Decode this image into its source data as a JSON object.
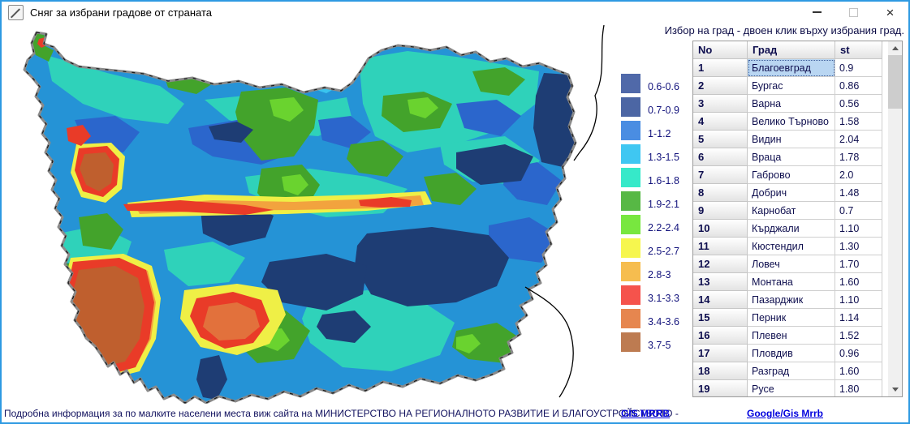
{
  "window": {
    "title": "Сняг за избрани градове от страната",
    "icons": {
      "app": "pencil-icon",
      "minimize": "minimize-icon",
      "maximize": "maximize-icon",
      "close": "close-icon"
    },
    "close_glyph": "×"
  },
  "panel": {
    "instruction": "Избор на град - двоен клик върху избрания град."
  },
  "legend": {
    "items": [
      {
        "label": "0.6-0.6",
        "color": "#5069a9"
      },
      {
        "label": "0.7-0.9",
        "color": "#4c66a4"
      },
      {
        "label": "1-1.2",
        "color": "#4a8de2"
      },
      {
        "label": "1.3-1.5",
        "color": "#3fc7f2"
      },
      {
        "label": "1.6-1.8",
        "color": "#36e9c9"
      },
      {
        "label": "1.9-2.1",
        "color": "#57b845"
      },
      {
        "label": "2.2-2.4",
        "color": "#78e73f"
      },
      {
        "label": "2.5-2.7",
        "color": "#f6f64e"
      },
      {
        "label": "2.8-3",
        "color": "#f6bd4f"
      },
      {
        "label": "3.1-3.3",
        "color": "#f5534c"
      },
      {
        "label": "3.4-3.6",
        "color": "#e6864f"
      },
      {
        "label": "3.7-5",
        "color": "#bd7b51"
      }
    ]
  },
  "table": {
    "columns": [
      "No",
      "Град",
      "st"
    ],
    "rows": [
      {
        "no": "1",
        "city": "Благоевград",
        "st": "0.9",
        "selected": true
      },
      {
        "no": "2",
        "city": "Бургас",
        "st": "0.86"
      },
      {
        "no": "3",
        "city": "Варна",
        "st": "0.56"
      },
      {
        "no": "4",
        "city": "Велико Търново",
        "st": "1.58"
      },
      {
        "no": "5",
        "city": "Видин",
        "st": "2.04"
      },
      {
        "no": "6",
        "city": "Враца",
        "st": "1.78"
      },
      {
        "no": "7",
        "city": "Габрово",
        "st": "2.0"
      },
      {
        "no": "8",
        "city": "Добрич",
        "st": "1.48"
      },
      {
        "no": "9",
        "city": "Карнобат",
        "st": "0.7"
      },
      {
        "no": "10",
        "city": "Кърджали",
        "st": "1.10"
      },
      {
        "no": "11",
        "city": "Кюстендил",
        "st": "1.30"
      },
      {
        "no": "12",
        "city": "Ловеч",
        "st": "1.70"
      },
      {
        "no": "13",
        "city": "Монтана",
        "st": "1.60"
      },
      {
        "no": "14",
        "city": "Пазарджик",
        "st": "1.10"
      },
      {
        "no": "15",
        "city": "Перник",
        "st": "1.14"
      },
      {
        "no": "16",
        "city": "Плевен",
        "st": "1.52"
      },
      {
        "no": "17",
        "city": "Пловдив",
        "st": "0.96"
      },
      {
        "no": "18",
        "city": "Разград",
        "st": "1.60"
      },
      {
        "no": "19",
        "city": "Русе",
        "st": "1.80"
      }
    ],
    "selected_city": "Благоевград"
  },
  "statusbar": {
    "text": "Подробна информация за по малките населени места виж сайта на МИНИСТЕРСТВО НА РЕГИОНАЛНОТО РАЗВИТИЕ И БЛАГОУСТРОЙСТВОТО -",
    "links": [
      {
        "label": "GIS MRRB"
      },
      {
        "label": "Google/Gis Mrrb"
      }
    ]
  },
  "map": {
    "colors": {
      "base_blue": "#2593d6",
      "royal_blue": "#2b66cc",
      "navy": "#1e3d74",
      "teal": "#2fd2ba",
      "cyan": "#3ac4ee",
      "green": "#43a32b",
      "light_green": "#6ad32f",
      "yellow": "#efef46",
      "orange": "#f2a33e",
      "red": "#e93b28",
      "salmon": "#e2713c",
      "brown": "#bf5f2e",
      "border_gray": "#6e6e6e",
      "coastline": "#000000"
    }
  }
}
